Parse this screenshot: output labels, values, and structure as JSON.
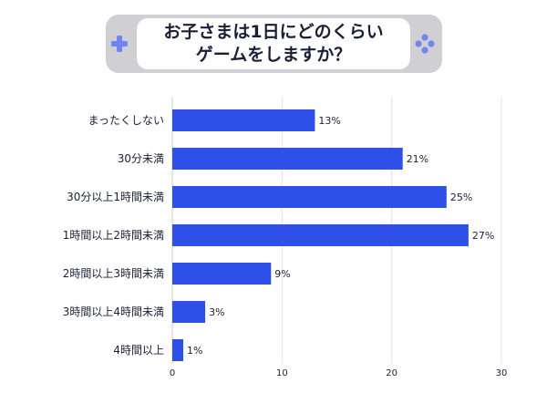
{
  "title": {
    "line1": "お子さまは1日にどのくらい",
    "line2": "ゲームをしますか？"
  },
  "colors": {
    "bar": "#2e4fe8",
    "banner": "#cfcfd4",
    "pad_icon": "#6f86f2",
    "text": "#1a1f36",
    "grid": "#e3e3e3"
  },
  "icons": {
    "left": "plus-pad-icon",
    "right": "four-buttons-icon"
  },
  "chart_data": {
    "type": "bar",
    "orientation": "horizontal",
    "categories": [
      "まったくしない",
      "30分未満",
      "30分以上1時間未満",
      "1時間以上2時間未満",
      "2時間以上3時間未満",
      "3時間以上4時間未満",
      "4時間以上"
    ],
    "values": [
      13,
      21,
      25,
      27,
      9,
      3,
      1
    ],
    "value_labels": [
      "13%",
      "21%",
      "25%",
      "27%",
      "9%",
      "3%",
      "1%"
    ],
    "xlim": [
      0,
      30
    ],
    "xticks": [
      0,
      10,
      20,
      30
    ],
    "grid": true
  }
}
